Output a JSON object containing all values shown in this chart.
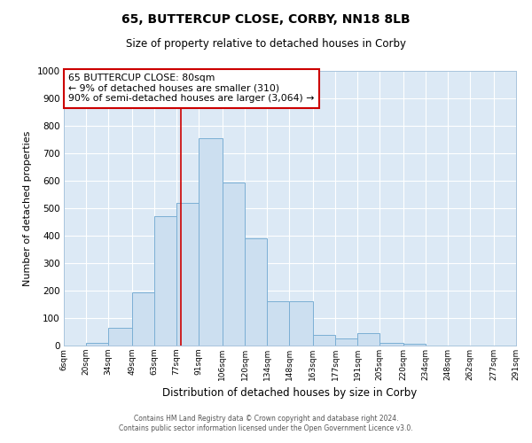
{
  "title": "65, BUTTERCUP CLOSE, CORBY, NN18 8LB",
  "subtitle": "Size of property relative to detached houses in Corby",
  "xlabel": "Distribution of detached houses by size in Corby",
  "ylabel": "Number of detached properties",
  "bar_color": "#ccdff0",
  "bar_edge_color": "#7bafd4",
  "fig_bg_color": "#ffffff",
  "ax_bg_color": "#dce9f5",
  "grid_color": "#ffffff",
  "annotation_box_edge_color": "#cc0000",
  "annotation_text_line1": "65 BUTTERCUP CLOSE: 80sqm",
  "annotation_text_line2": "← 9% of detached houses are smaller (310)",
  "annotation_text_line3": "90% of semi-detached houses are larger (3,064) →",
  "vline_x": 80,
  "vline_color": "#cc0000",
  "ylim": [
    0,
    1000
  ],
  "yticks": [
    0,
    100,
    200,
    300,
    400,
    500,
    600,
    700,
    800,
    900,
    1000
  ],
  "bin_edges": [
    6,
    20,
    34,
    49,
    63,
    77,
    91,
    106,
    120,
    134,
    148,
    163,
    177,
    191,
    205,
    220,
    234,
    248,
    262,
    277,
    291
  ],
  "bin_labels": [
    "6sqm",
    "20sqm",
    "34sqm",
    "49sqm",
    "63sqm",
    "77sqm",
    "91sqm",
    "106sqm",
    "120sqm",
    "134sqm",
    "148sqm",
    "163sqm",
    "177sqm",
    "191sqm",
    "205sqm",
    "220sqm",
    "234sqm",
    "248sqm",
    "262sqm",
    "277sqm",
    "291sqm"
  ],
  "values": [
    0,
    10,
    65,
    195,
    470,
    520,
    755,
    595,
    390,
    160,
    160,
    40,
    25,
    45,
    10,
    5,
    0,
    0,
    0,
    0
  ],
  "footer_line1": "Contains HM Land Registry data © Crown copyright and database right 2024.",
  "footer_line2": "Contains public sector information licensed under the Open Government Licence v3.0."
}
